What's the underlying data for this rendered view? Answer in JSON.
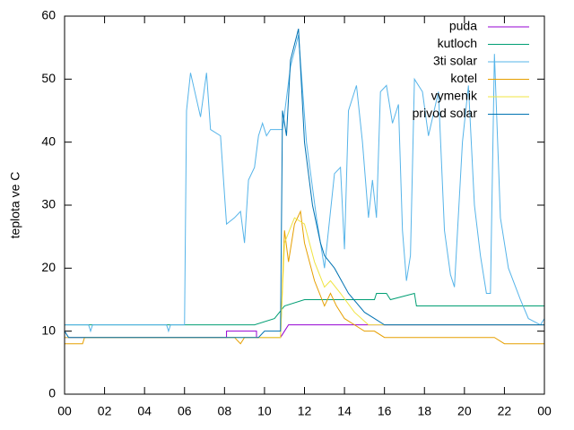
{
  "chart_data": {
    "type": "line",
    "ylabel": "teplota ve C",
    "xlim": [
      0,
      24
    ],
    "xticks": [
      {
        "value": 0,
        "label": "00"
      },
      {
        "value": 2,
        "label": "02"
      },
      {
        "value": 4,
        "label": "04"
      },
      {
        "value": 6,
        "label": "06"
      },
      {
        "value": 8,
        "label": "08"
      },
      10,
      12,
      14,
      16,
      18,
      20,
      22,
      {
        "value": 24,
        "label": "00"
      }
    ],
    "ylim": [
      0,
      60
    ],
    "yticks": [
      0,
      10,
      20,
      30,
      40,
      50,
      60
    ],
    "legend": "top-right",
    "series": [
      {
        "name": "puda",
        "color": "#9400d3",
        "x": [
          0,
          8.1,
          8.1,
          9.6,
          9.6,
          10.8,
          11.2,
          15.5,
          24
        ],
        "values": [
          9,
          9,
          10,
          10,
          9,
          9,
          11,
          11,
          11
        ]
      },
      {
        "name": "kutloch",
        "color": "#009e73",
        "x": [
          0,
          9.5,
          10.5,
          11,
          12,
          15.5,
          15.6,
          16.1,
          16.3,
          17.5,
          17.6,
          24
        ],
        "values": [
          11,
          11,
          12,
          14,
          15,
          15,
          16,
          16,
          15,
          16,
          14,
          14
        ]
      },
      {
        "name": "3ti solar",
        "color": "#56b4e9",
        "x": [
          0,
          1.2,
          1.3,
          1.4,
          5.1,
          5.2,
          5.3,
          6.0,
          6.1,
          6.3,
          6.8,
          7.1,
          7.3,
          7.8,
          8.1,
          8.5,
          8.8,
          9.0,
          9.2,
          9.5,
          9.7,
          9.9,
          10.1,
          10.3,
          10.9,
          11.3,
          11.7,
          12.1,
          12.6,
          13.0,
          13.5,
          13.8,
          14.0,
          14.2,
          14.6,
          14.9,
          15.2,
          15.4,
          15.6,
          15.8,
          16.1,
          16.4,
          16.7,
          16.9,
          17.1,
          17.3,
          17.5,
          17.9,
          18.2,
          18.7,
          19.0,
          19.3,
          19.5,
          19.9,
          20.2,
          20.5,
          20.8,
          21.1,
          21.3,
          21.5,
          21.8,
          22.2,
          22.8,
          23.2,
          23.8,
          24
        ],
        "values": [
          11,
          11,
          10,
          11,
          11,
          10,
          11,
          11,
          45,
          51,
          44,
          51,
          42,
          41,
          27,
          28,
          29,
          24,
          34,
          36,
          41,
          43,
          41,
          42,
          42,
          52,
          57,
          40,
          28,
          20,
          35,
          36,
          23,
          45,
          49,
          40,
          28,
          34,
          28,
          48,
          49,
          43,
          46,
          26,
          18,
          22,
          50,
          48,
          41,
          48,
          26,
          19,
          17,
          40,
          49,
          30,
          22,
          16,
          16,
          54,
          28,
          20,
          15,
          12,
          11,
          12
        ]
      },
      {
        "name": "kotel",
        "color": "#e69f00",
        "x": [
          0,
          0.9,
          1.0,
          8.5,
          8.8,
          9.0,
          10.8,
          11.0,
          11.2,
          11.5,
          11.8,
          12.0,
          12.5,
          13.0,
          13.3,
          13.6,
          14.0,
          14.5,
          15.0,
          15.5,
          16.0,
          21.5,
          22.0,
          24
        ],
        "values": [
          8,
          8,
          9,
          9,
          8,
          9,
          9,
          26,
          21,
          27,
          29,
          24,
          18,
          14,
          16,
          14,
          12,
          11,
          10,
          10,
          9,
          9,
          8,
          8
        ]
      },
      {
        "name": "vymenik",
        "color": "#f0e442",
        "x": [
          0,
          10.8,
          11.0,
          11.5,
          12.0,
          12.5,
          13.0,
          13.3,
          13.8,
          14.5,
          15.2,
          24
        ],
        "values": [
          9,
          9,
          24,
          28,
          27,
          21,
          17,
          18,
          16,
          13,
          11,
          11
        ]
      },
      {
        "name": "privod solar",
        "color": "#0072b2",
        "x": [
          0,
          0.2,
          9.7,
          10.0,
          10.8,
          10.9,
          11.1,
          11.3,
          11.7,
          12.0,
          12.4,
          12.8,
          13.0,
          13.5,
          14.2,
          15.0,
          15.5,
          16.0,
          24
        ],
        "values": [
          10,
          9,
          9,
          10,
          10,
          45,
          41,
          53,
          58,
          40,
          30,
          24,
          22,
          20,
          16,
          13,
          12,
          11,
          11
        ]
      }
    ]
  }
}
